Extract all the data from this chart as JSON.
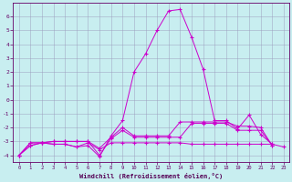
{
  "xlabel": "Windchill (Refroidissement éolien,°C)",
  "background_color": "#c8eef0",
  "grid_color": "#9999bb",
  "line_color": "#cc00cc",
  "xlim": [
    -0.5,
    23.5
  ],
  "ylim": [
    -4.5,
    7.0
  ],
  "xticks": [
    0,
    1,
    2,
    3,
    4,
    5,
    6,
    7,
    8,
    9,
    10,
    11,
    12,
    13,
    14,
    15,
    16,
    17,
    18,
    19,
    20,
    21,
    22,
    23
  ],
  "yticks": [
    -4,
    -3,
    -2,
    -1,
    0,
    1,
    2,
    3,
    4,
    5,
    6
  ],
  "series_x": [
    [
      0,
      1,
      2,
      3,
      4,
      5,
      6,
      7,
      8,
      9,
      10,
      11,
      12,
      13,
      14,
      15,
      16,
      17,
      18,
      19,
      20,
      21,
      22
    ],
    [
      0,
      1,
      2,
      3,
      4,
      5,
      6,
      7,
      8,
      9,
      10,
      11,
      12,
      13,
      14,
      15,
      16,
      17,
      18,
      19,
      20,
      21,
      22
    ],
    [
      0,
      1,
      2,
      3,
      4,
      5,
      6,
      7,
      8,
      9,
      10,
      11,
      12,
      13,
      14,
      15,
      16,
      17,
      18,
      19,
      20,
      21,
      22
    ],
    [
      0,
      1,
      2,
      3,
      4,
      5,
      6,
      7,
      8,
      9,
      10,
      11,
      12,
      13,
      14,
      15,
      16,
      17,
      18,
      19,
      20,
      21,
      22,
      23
    ]
  ],
  "series_y": [
    [
      -4.0,
      -3.3,
      -3.1,
      -3.2,
      -3.2,
      -3.4,
      -3.3,
      -4.1,
      -2.6,
      -1.5,
      2.0,
      3.3,
      5.0,
      6.4,
      6.5,
      4.5,
      2.2,
      -1.5,
      -1.5,
      -2.1,
      -1.1,
      -2.5,
      -3.2
    ],
    [
      -4.0,
      -3.1,
      -3.1,
      -3.0,
      -3.0,
      -3.0,
      -3.0,
      -3.5,
      -2.7,
      -2.0,
      -2.6,
      -2.6,
      -2.6,
      -2.6,
      -1.6,
      -1.6,
      -1.6,
      -1.6,
      -1.6,
      -1.9,
      -1.9,
      -2.0,
      -3.3
    ],
    [
      -4.0,
      -3.1,
      -3.1,
      -3.0,
      -3.0,
      -3.0,
      -3.0,
      -4.0,
      -2.8,
      -2.2,
      -2.7,
      -2.7,
      -2.7,
      -2.7,
      -2.7,
      -1.7,
      -1.7,
      -1.7,
      -1.7,
      -2.2,
      -2.2,
      -2.2,
      -3.3
    ],
    [
      -4.0,
      -3.3,
      -3.1,
      -3.2,
      -3.2,
      -3.4,
      -3.1,
      -3.6,
      -3.1,
      -3.1,
      -3.1,
      -3.1,
      -3.1,
      -3.1,
      -3.1,
      -3.2,
      -3.2,
      -3.2,
      -3.2,
      -3.2,
      -3.2,
      -3.2,
      -3.2,
      -3.4
    ]
  ]
}
